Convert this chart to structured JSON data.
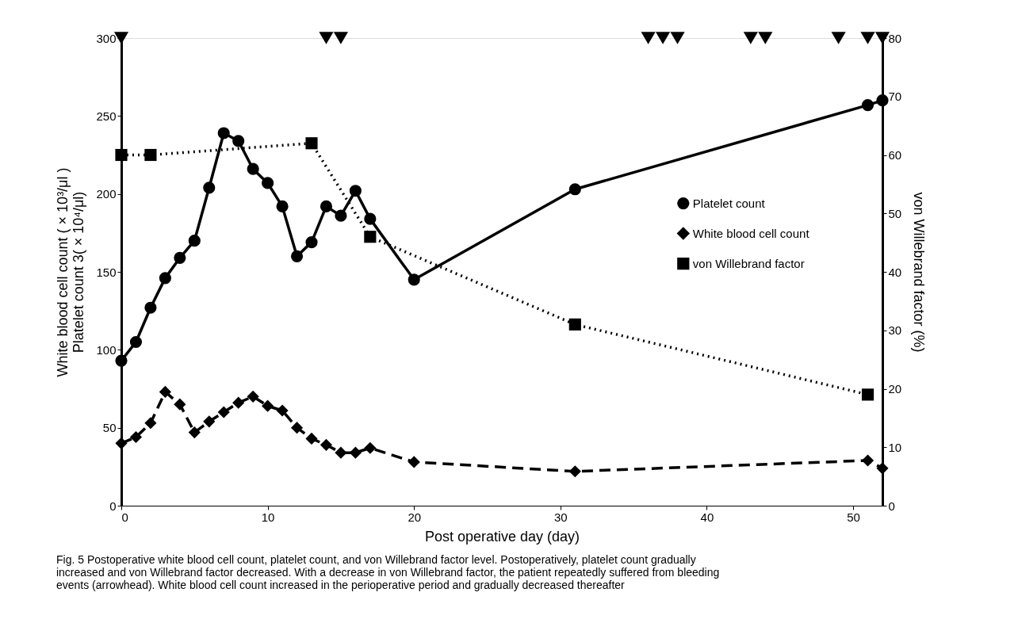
{
  "chart_data": {
    "type": "line",
    "xlabel": "Post operative day (day)",
    "ylabel": "White blood cell count ( × 10³/μl )\nPlatelet count 3( × 10⁴/μl)",
    "y2label": "von Willebrand factor (%)",
    "xlim": [
      0,
      52
    ],
    "xticks": [
      0,
      10,
      20,
      30,
      40,
      50
    ],
    "ylim": [
      0,
      300
    ],
    "yticks": [
      0,
      50,
      100,
      150,
      200,
      250,
      300
    ],
    "y2lim": [
      0,
      80
    ],
    "y2ticks": [
      0,
      10,
      20,
      30,
      40,
      50,
      60,
      70,
      80
    ],
    "grid": false,
    "legend": "right",
    "series": [
      {
        "name": "Platelet count",
        "color": "#000000",
        "marker": "circle",
        "line_style": "solid",
        "x": [
          0,
          1,
          2,
          3,
          4,
          5,
          6,
          7,
          8,
          9,
          10,
          11,
          12,
          13,
          14,
          15,
          16,
          17,
          20,
          31,
          51,
          52
        ],
        "values": [
          93,
          105,
          127,
          146,
          159,
          170,
          204,
          239,
          234,
          216,
          207,
          192,
          160,
          169,
          192,
          186,
          202,
          184,
          145,
          203,
          257,
          260
        ]
      },
      {
        "name": "White blood cell count",
        "color": "#000000",
        "marker": "diamond",
        "line_style": "dashed",
        "x": [
          0,
          1,
          2,
          3,
          4,
          5,
          6,
          7,
          8,
          9,
          10,
          11,
          12,
          13,
          14,
          15,
          16,
          17,
          20,
          31,
          51,
          52
        ],
        "values": [
          40,
          44,
          53,
          73,
          65,
          47,
          54,
          60,
          66,
          70,
          64,
          61,
          50,
          43,
          39,
          34,
          34,
          37,
          28,
          22,
          29,
          24
        ]
      },
      {
        "name": "von Willebrand factor",
        "color": "#000000",
        "marker": "square",
        "line_style": "dotted",
        "axis": "y2",
        "x": [
          0,
          2,
          13,
          17,
          31,
          51
        ],
        "values": [
          60,
          60,
          62,
          46,
          31,
          19
        ]
      },
      {
        "color": "#000000",
        "type": "scatter",
        "marker": "triangle",
        "x": [
          0,
          14,
          15,
          36,
          37,
          38,
          43,
          44,
          49,
          51,
          52
        ],
        "values": [
          300,
          300,
          300,
          300,
          300,
          300,
          300,
          300,
          300,
          300,
          300
        ]
      }
    ],
    "annotations": [
      "Fig. 5  Postoperative white blood cell count, platelet count, and von Willebrand factor level. Postoperatively, platelet count gradually increased and von Willebrand factor decreased. With a decrease in von Willebrand factor, the patient repeatedly suffered from bleeding events (arrowhead). White blood cell count increased in the perioperative period and gradually decreased thereafter"
    ]
  }
}
